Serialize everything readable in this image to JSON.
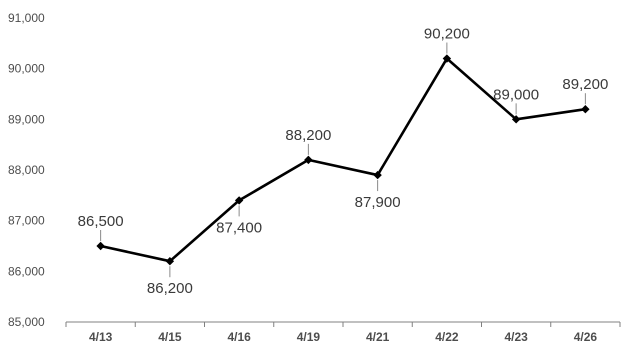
{
  "chart_data": {
    "type": "line",
    "title": "",
    "xlabel": "",
    "ylabel": "",
    "categories": [
      "4/13",
      "4/15",
      "4/16",
      "4/19",
      "4/21",
      "4/22",
      "4/23",
      "4/26"
    ],
    "values": [
      86500,
      86200,
      87400,
      88200,
      87900,
      90200,
      89000,
      89200
    ],
    "data_labels": [
      "86,500",
      "86,200",
      "87,400",
      "88,200",
      "87,900",
      "90,200",
      "89,000",
      "89,200"
    ],
    "label_positions": [
      "above",
      "below",
      "below",
      "above",
      "below",
      "above",
      "above",
      "above"
    ],
    "ylim": [
      85000,
      91000
    ],
    "yticks": [
      85000,
      86000,
      87000,
      88000,
      89000,
      90000,
      91000
    ],
    "ytick_labels": [
      "85,000",
      "86,000",
      "87,000",
      "88,000",
      "89,000",
      "90,000",
      "91,000"
    ],
    "grid": false,
    "legend": "none",
    "series_color": "#000000",
    "marker": "diamond"
  }
}
